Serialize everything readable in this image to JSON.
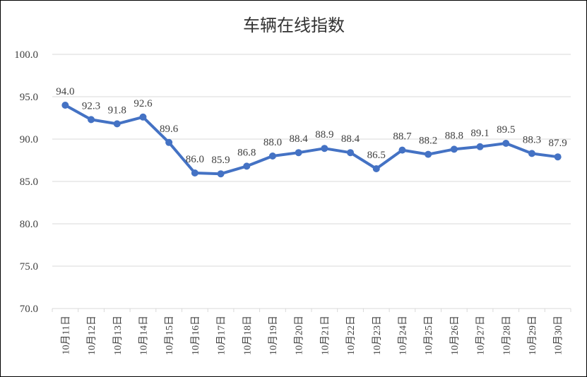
{
  "chart_data": {
    "type": "line",
    "title": "车辆在线指数",
    "xlabel": "",
    "ylabel": "",
    "ylim": [
      70.0,
      100.0
    ],
    "yticks": [
      "100.0",
      "95.0",
      "90.0",
      "85.0",
      "80.0",
      "75.0",
      "70.0"
    ],
    "grid": true,
    "legend": "none",
    "color": "#4472c4",
    "categories": [
      "10月11日",
      "10月12日",
      "10月13日",
      "10月14日",
      "10月15日",
      "10月16日",
      "10月17日",
      "10月18日",
      "10月19日",
      "10月20日",
      "10月21日",
      "10月22日",
      "10月23日",
      "10月24日",
      "10月25日",
      "10月26日",
      "10月27日",
      "10月28日",
      "10月29日",
      "10月30日"
    ],
    "values": [
      94.0,
      92.3,
      91.8,
      92.6,
      89.6,
      86.0,
      85.9,
      86.8,
      88.0,
      88.4,
      88.9,
      88.4,
      86.5,
      88.7,
      88.2,
      88.8,
      89.1,
      89.5,
      88.3,
      87.9
    ],
    "data_labels": [
      "94.0",
      "92.3",
      "91.8",
      "92.6",
      "89.6",
      "86.0",
      "85.9",
      "86.8",
      "88.0",
      "88.4",
      "88.9",
      "88.4",
      "86.5",
      "88.7",
      "88.2",
      "88.8",
      "89.1",
      "89.5",
      "88.3",
      "87.9"
    ]
  }
}
